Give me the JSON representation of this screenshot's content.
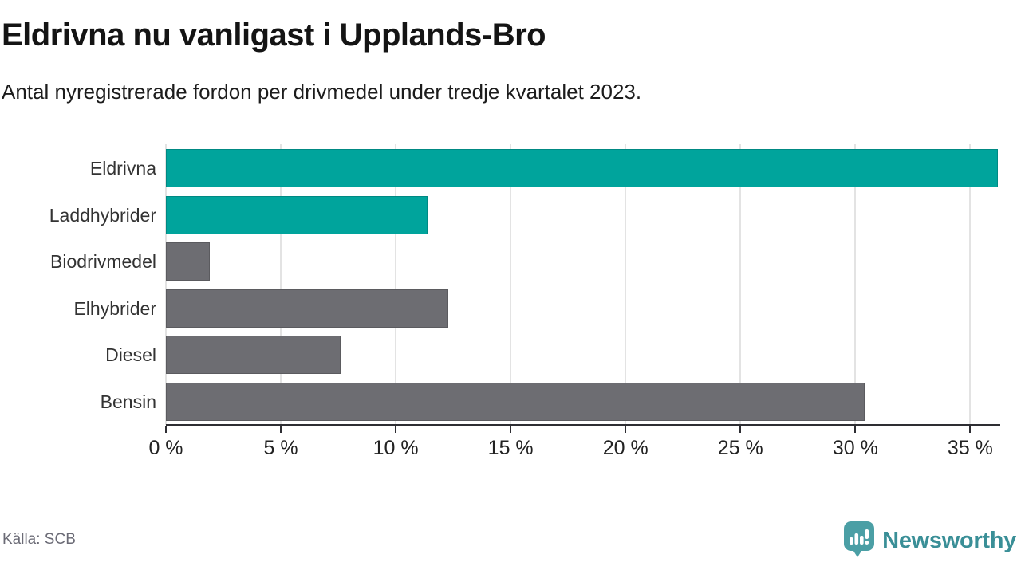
{
  "header": {
    "title": "Eldrivna nu vanligast i Upplands-Bro",
    "subtitle": "Antal nyregistrerade fordon per drivmedel under tredje kvartalet 2023."
  },
  "footer": {
    "source": "Källa: SCB",
    "brand": "Newsworthy",
    "brand_icon": "newsworthy-speech-bubble-chart-icon"
  },
  "colors": {
    "highlight_bar": "#00a49c",
    "default_bar": "#6d6d72",
    "grid": "#e3e3e3",
    "axis": "#2e2e33",
    "title_text": "#141414",
    "category_label": "#333333",
    "tick_label": "#222222",
    "source_text": "#6b6b76",
    "brand_text": "#3a8f97",
    "brand_icon_fill": "#4b9fa5"
  },
  "chart_data": {
    "type": "bar",
    "orientation": "horizontal",
    "title": "Eldrivna nu vanligast i Upplands-Bro",
    "subtitle": "Antal nyregistrerade fordon per drivmedel under tredje kvartalet 2023.",
    "categories": [
      "Eldrivna",
      "Laddhybrider",
      "Biodrivmedel",
      "Elhybrider",
      "Diesel",
      "Bensin"
    ],
    "values": [
      36.2,
      11.4,
      1.9,
      12.3,
      7.6,
      30.4
    ],
    "unit": "%",
    "bar_colors": [
      "#00a49c",
      "#00a49c",
      "#6d6d72",
      "#6d6d72",
      "#6d6d72",
      "#6d6d72"
    ],
    "xlabel": "",
    "ylabel": "",
    "xlim": [
      0,
      36.2
    ],
    "xticks": [
      0,
      5,
      10,
      15,
      20,
      25,
      30,
      35
    ],
    "xtick_labels": [
      "0 %",
      "5 %",
      "10 %",
      "15 %",
      "20 %",
      "25 %",
      "30 %",
      "35 %"
    ],
    "grid": true,
    "legend": false
  }
}
